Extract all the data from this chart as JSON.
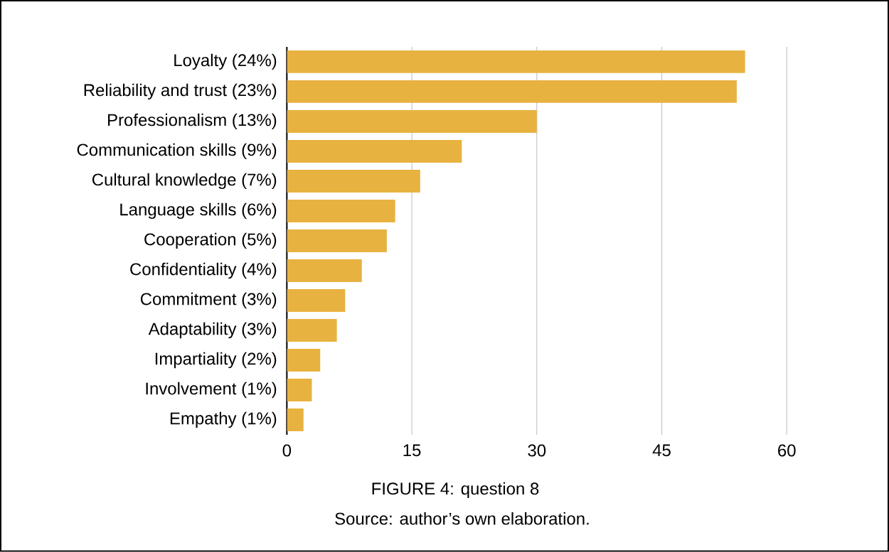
{
  "chart_data": {
    "type": "bar",
    "orientation": "horizontal",
    "title": "FIGURE 4: question 8",
    "annotations": [
      "Source: author’s own elaboration."
    ],
    "categories": [
      "Loyalty (24%)",
      "Reliability and trust (23%)",
      "Professionalism (13%)",
      "Communication skills (9%)",
      "Cultural knowledge (7%)",
      "Language skills (6%)",
      "Cooperation (5%)",
      "Confidentiality (4%)",
      "Commitment (3%)",
      "Adaptability (3%)",
      "Impartiality (2%)",
      "Involvement (1%)",
      "Empathy (1%)"
    ],
    "values": [
      55,
      54,
      30,
      21,
      16,
      13,
      12,
      9,
      7,
      6,
      4,
      3,
      2
    ],
    "color": "#e8b240",
    "xlim": [
      0,
      60
    ],
    "xticks": [
      0,
      15,
      30,
      45,
      60
    ],
    "grid": "x"
  }
}
